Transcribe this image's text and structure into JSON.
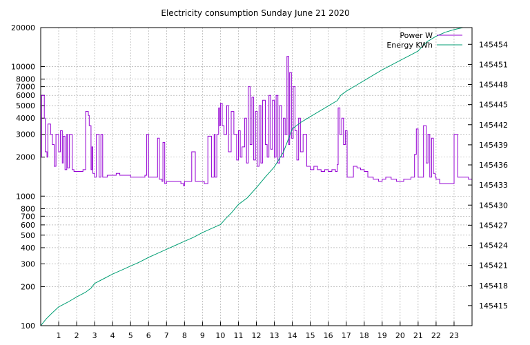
{
  "chart_data": {
    "type": "line",
    "title": "Electricity consumption Sunday June 21 2020",
    "xlabel": "",
    "ylabel": "",
    "x_ticks": [
      1,
      2,
      3,
      4,
      5,
      6,
      7,
      8,
      9,
      10,
      11,
      12,
      13,
      14,
      15,
      16,
      17,
      18,
      19,
      20,
      21,
      22,
      23
    ],
    "xlim": [
      0,
      24
    ],
    "y_left": {
      "scale": "log",
      "ylim": [
        100,
        20000
      ],
      "ticks": [
        100,
        200,
        300,
        400,
        500,
        600,
        700,
        800,
        1000,
        2000,
        3000,
        4000,
        5000,
        6000,
        7000,
        8000,
        10000,
        20000
      ]
    },
    "y_right": {
      "scale": "linear",
      "ylim": [
        145412,
        145456.5
      ],
      "ticks": [
        145415,
        145418,
        145421,
        145424,
        145427,
        145430,
        145433,
        145436,
        145439,
        145442,
        145445,
        145448,
        145451,
        145454
      ]
    },
    "grid": true,
    "legend_position": "top-right",
    "colors": {
      "power": "#9400d3",
      "energy": "#009e73"
    },
    "series": [
      {
        "name": "Power W",
        "axis": "left",
        "x": [
          0.0,
          0.05,
          0.2,
          0.25,
          0.35,
          0.4,
          0.55,
          0.65,
          0.75,
          0.85,
          1.0,
          1.1,
          1.2,
          1.25,
          1.35,
          1.45,
          1.5,
          1.6,
          1.75,
          1.85,
          1.95,
          2.0,
          2.1,
          2.2,
          2.35,
          2.5,
          2.65,
          2.7,
          2.8,
          2.85,
          2.9,
          3.0,
          3.1,
          3.25,
          3.35,
          3.45,
          3.6,
          3.7,
          3.8,
          3.9,
          4.0,
          4.2,
          4.4,
          4.6,
          4.8,
          5.0,
          5.2,
          5.4,
          5.6,
          5.8,
          5.9,
          6.0,
          6.1,
          6.3,
          6.5,
          6.6,
          6.75,
          6.8,
          6.9,
          7.0,
          7.2,
          7.5,
          7.8,
          7.95,
          8.0,
          8.15,
          8.4,
          8.6,
          8.9,
          9.1,
          9.3,
          9.5,
          9.65,
          9.7,
          9.8,
          9.9,
          9.95,
          10.0,
          10.1,
          10.2,
          10.35,
          10.45,
          10.6,
          10.75,
          10.9,
          11.0,
          11.1,
          11.2,
          11.35,
          11.45,
          11.55,
          11.65,
          11.75,
          11.85,
          11.95,
          12.05,
          12.15,
          12.25,
          12.35,
          12.5,
          12.6,
          12.7,
          12.8,
          12.9,
          13.0,
          13.1,
          13.2,
          13.3,
          13.4,
          13.5,
          13.6,
          13.7,
          13.8,
          13.85,
          13.95,
          14.05,
          14.15,
          14.25,
          14.35,
          14.45,
          14.6,
          14.8,
          15.0,
          15.2,
          15.4,
          15.6,
          15.8,
          16.0,
          16.2,
          16.4,
          16.5,
          16.55,
          16.65,
          16.75,
          16.85,
          16.95,
          17.05,
          17.2,
          17.4,
          17.6,
          17.8,
          18.0,
          18.2,
          18.5,
          18.8,
          19.0,
          19.2,
          19.5,
          19.8,
          20.0,
          20.2,
          20.4,
          20.6,
          20.8,
          20.9,
          21.0,
          21.1,
          21.3,
          21.45,
          21.55,
          21.65,
          21.75,
          21.85,
          21.95,
          22.0,
          22.2,
          22.4,
          22.6,
          22.8,
          22.9,
          23.0,
          23.2,
          23.4,
          23.6,
          23.8,
          24.0
        ],
        "values": [
          2000,
          6000,
          4000,
          2200,
          2000,
          3600,
          3000,
          2500,
          1700,
          3000,
          2200,
          3200,
          1800,
          2900,
          1600,
          3000,
          1650,
          3000,
          1600,
          1550,
          1550,
          1550,
          1550,
          1550,
          1600,
          4500,
          4200,
          3500,
          1600,
          2400,
          1500,
          1400,
          3000,
          1400,
          3000,
          1400,
          1400,
          1450,
          1450,
          1450,
          1450,
          1500,
          1450,
          1450,
          1450,
          1400,
          1400,
          1400,
          1400,
          1450,
          3000,
          1400,
          1400,
          1400,
          2800,
          1350,
          1300,
          2600,
          1250,
          1300,
          1300,
          1300,
          1250,
          1200,
          1300,
          1300,
          2200,
          1300,
          1300,
          1250,
          2900,
          1400,
          3000,
          1400,
          3000,
          4800,
          3500,
          5200,
          3500,
          3000,
          5000,
          2200,
          4500,
          3000,
          1900,
          3200,
          2000,
          2400,
          4000,
          1800,
          7000,
          2500,
          5800,
          1900,
          4500,
          1700,
          5000,
          1800,
          5500,
          2500,
          2000,
          6000,
          2300,
          5500,
          2000,
          6000,
          1800,
          5000,
          2000,
          4000,
          3000,
          12000,
          2500,
          9000,
          2800,
          7000,
          3200,
          1900,
          4000,
          2200,
          3000,
          1700,
          1600,
          1700,
          1600,
          1550,
          1600,
          1550,
          1600,
          1550,
          1750,
          4800,
          3000,
          4000,
          2500,
          3200,
          1400,
          1400,
          1700,
          1650,
          1600,
          1550,
          1400,
          1350,
          1300,
          1350,
          1400,
          1350,
          1300,
          1300,
          1350,
          1350,
          1400,
          2100,
          3300,
          1400,
          1400,
          3500,
          1800,
          3000,
          1400,
          2800,
          1500,
          1400,
          1350,
          1250,
          1250,
          1250,
          1250,
          1250,
          3000,
          1400,
          1400,
          1400,
          1350,
          1350
        ]
      },
      {
        "name": "Energy KWh",
        "axis": "right",
        "x": [
          0,
          0.3,
          0.6,
          1,
          1.5,
          2,
          2.5,
          2.8,
          3,
          3.5,
          4,
          4.5,
          5,
          5.5,
          6,
          6.5,
          7,
          7.5,
          8,
          8.5,
          9,
          9.5,
          10,
          10.3,
          10.6,
          11,
          11.5,
          12,
          12.5,
          13,
          13.5,
          14,
          14.5,
          15,
          15.5,
          16,
          16.5,
          16.7,
          17,
          17.5,
          18,
          18.5,
          19,
          19.5,
          20,
          20.5,
          21,
          21.2,
          21.5,
          22,
          22.5,
          23,
          23.5,
          24
        ],
        "values": [
          145412,
          145413,
          145413.8,
          145414.8,
          145415.5,
          145416.3,
          145417,
          145417.6,
          145418.3,
          145419,
          145419.7,
          145420.3,
          145420.9,
          145421.5,
          145422.2,
          145422.8,
          145423.4,
          145424,
          145424.6,
          145425.2,
          145425.9,
          145426.5,
          145427.1,
          145428,
          145428.8,
          145430.1,
          145431.1,
          145432.6,
          145434.2,
          145435.7,
          145437.9,
          145441.4,
          145442.4,
          145443.2,
          145444,
          145444.8,
          145445.6,
          145446.4,
          145447,
          145447.8,
          145448.6,
          145449.4,
          145450.2,
          145450.9,
          145451.6,
          145452.3,
          145453,
          145453.6,
          145454.4,
          145455.2,
          145455.8,
          145456.2,
          145456.5,
          145456.5
        ]
      }
    ]
  }
}
